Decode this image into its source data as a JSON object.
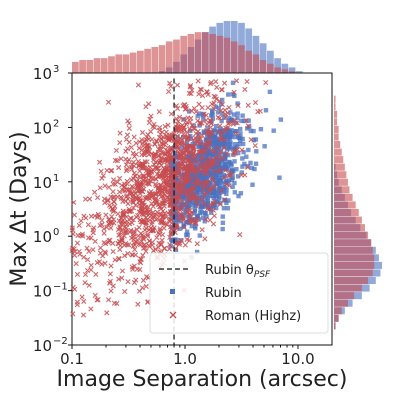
{
  "chart_data": {
    "type": "scatter",
    "xlabel": "Image Separation (arcsec)",
    "ylabel": "Max Δt (Days)",
    "xscale": "log",
    "yscale": "log",
    "xlim": [
      0.1,
      20
    ],
    "ylim": [
      0.01,
      1000
    ],
    "x_ticks": [
      {
        "value": 0.1,
        "label": "0.1"
      },
      {
        "value": 1.0,
        "label": "1.0"
      },
      {
        "value": 10.0,
        "label": "10.0"
      }
    ],
    "y_ticks": [
      {
        "value": 0.01,
        "base": "10",
        "exp": "−2"
      },
      {
        "value": 0.1,
        "base": "10",
        "exp": "−1"
      },
      {
        "value": 1,
        "base": "10",
        "exp": "0"
      },
      {
        "value": 10,
        "base": "10",
        "exp": "1"
      },
      {
        "value": 100,
        "base": "10",
        "exp": "2"
      },
      {
        "value": 1000,
        "base": "10",
        "exp": "3"
      }
    ],
    "reference_line": {
      "x": 0.8,
      "style": "dashed",
      "label_main": "Rubin θ",
      "label_sub": "PSF"
    },
    "legend_position": "lower-right",
    "series": [
      {
        "name": "Rubin",
        "marker": "square",
        "color": "#4a72c0",
        "center": {
          "log_x": 0.15,
          "log_y": 1.15
        },
        "spread": {
          "log_x": 0.2,
          "log_y": 0.45
        },
        "correlation": 1.5,
        "count": 950,
        "x_min": 0.75,
        "marginal_x_hist": [
          0,
          0,
          0,
          0,
          0,
          0,
          0,
          0,
          0,
          0,
          0,
          0,
          1,
          3,
          6,
          10,
          14,
          18,
          22,
          25,
          27,
          28,
          28,
          27,
          24,
          20,
          16,
          12,
          8,
          5,
          3,
          1,
          0,
          0,
          0,
          0
        ],
        "marginal_y_hist": [
          0,
          0,
          0,
          0,
          0,
          0,
          0,
          0,
          0,
          0,
          0,
          0,
          1,
          2,
          3,
          5,
          7,
          9,
          11,
          14,
          17,
          21,
          24,
          27,
          29,
          31,
          30,
          27,
          23,
          18,
          12,
          7,
          3,
          1,
          0,
          0
        ]
      },
      {
        "name": "Roman (Highz)",
        "marker": "x",
        "color": "#c84b4f",
        "center": {
          "log_x": -0.2,
          "log_y": 0.95
        },
        "spread": {
          "log_x": 0.33,
          "log_y": 0.7
        },
        "correlation": 1.6,
        "count": 1300,
        "x_min": 0.1,
        "marginal_x_hist": [
          6,
          7,
          7,
          8,
          8,
          9,
          10,
          10,
          11,
          12,
          13,
          14,
          15,
          17,
          18,
          20,
          21,
          22,
          22,
          21,
          20,
          19,
          17,
          15,
          12,
          10,
          7,
          5,
          3,
          2,
          1,
          0,
          0,
          0,
          0,
          0
        ],
        "marginal_y_hist": [
          0,
          0,
          0,
          1,
          1,
          2,
          2,
          3,
          3,
          4,
          5,
          6,
          7,
          8,
          9,
          10,
          12,
          14,
          16,
          18,
          20,
          22,
          24,
          25,
          26,
          26,
          25,
          22,
          18,
          13,
          9,
          5,
          3,
          1,
          0,
          0
        ]
      }
    ]
  }
}
